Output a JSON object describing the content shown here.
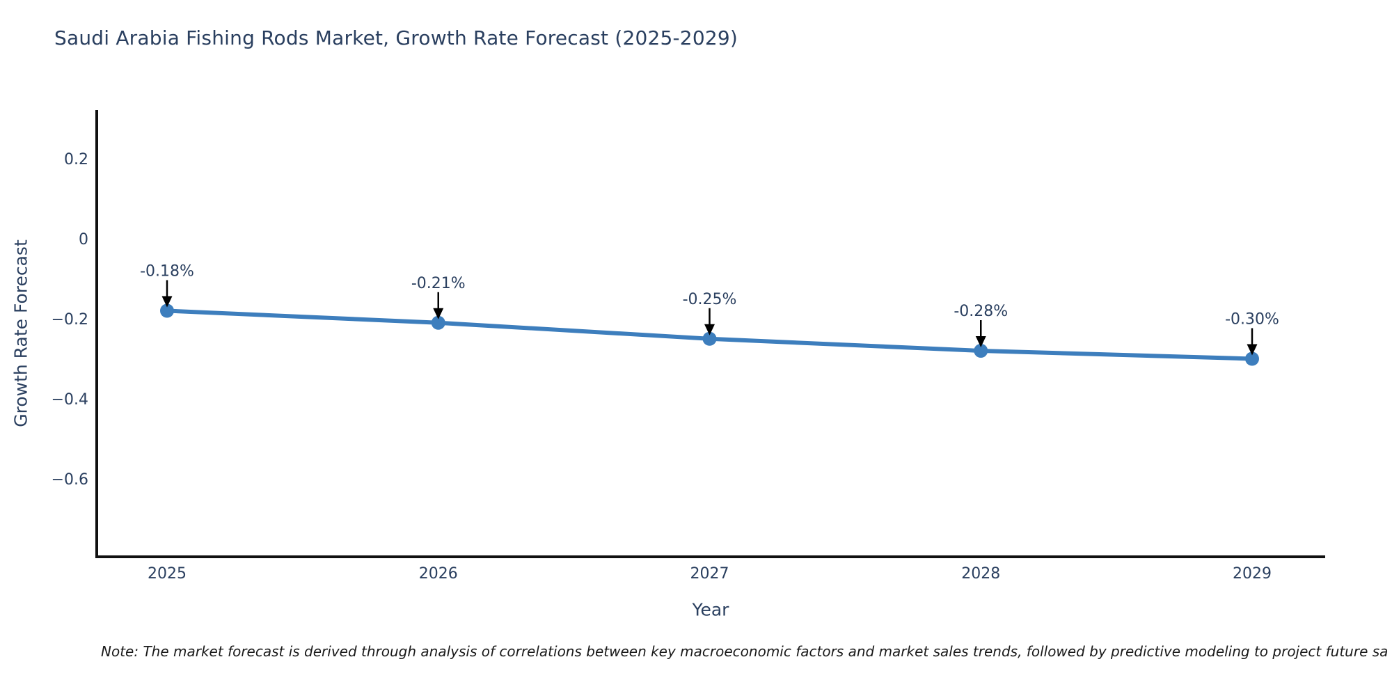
{
  "chart_data": {
    "type": "line",
    "title": "Saudi Arabia Fishing Rods Market, Growth Rate Forecast (2025-2029)",
    "xlabel": "Year",
    "ylabel": "Growth Rate Forecast",
    "categories": [
      "2025",
      "2026",
      "2027",
      "2028",
      "2029"
    ],
    "series": [
      {
        "name": "Growth Rate Forecast",
        "values": [
          -0.18,
          -0.21,
          -0.25,
          -0.28,
          -0.3
        ]
      }
    ],
    "point_labels": [
      "-0.18%",
      "-0.21%",
      "-0.25%",
      "-0.28%",
      "-0.30%"
    ],
    "yticks": [
      {
        "value": 0.2,
        "label": "0.2"
      },
      {
        "value": 0.0,
        "label": "0"
      },
      {
        "value": -0.2,
        "label": "−0.2"
      },
      {
        "value": -0.4,
        "label": "−0.4"
      },
      {
        "value": -0.6,
        "label": "−0.6"
      }
    ],
    "ylim": [
      -0.79,
      0.32
    ],
    "grid": false,
    "legend": "none",
    "colors": {
      "line": "#3d7ebd",
      "marker": "#3d7ebd",
      "axis": "#111111",
      "text": "#2a3f5f",
      "annotation_arrow": "#000000",
      "note_text": "#1a1a1a",
      "background": "#ffffff"
    }
  },
  "note": {
    "text": "Note: The market forecast is derived through analysis of correlations between key macroeconomic factors and market sales trends, followed by predictive modeling to project future sa"
  }
}
